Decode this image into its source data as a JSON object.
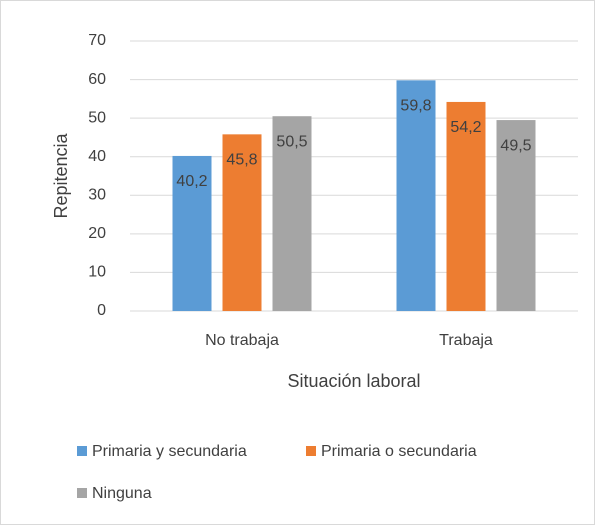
{
  "chart_data": {
    "type": "bar",
    "categories": [
      "No trabaja",
      "Trabaja"
    ],
    "series": [
      {
        "name": "Primaria y secundaria",
        "color": "#5b9bd5",
        "values": [
          40.2,
          59.8
        ],
        "value_labels": [
          "40,2",
          "59,8"
        ]
      },
      {
        "name": "Primaria o secundaria",
        "color": "#ed7d31",
        "values": [
          45.8,
          54.2
        ],
        "value_labels": [
          "45,8",
          "54,2"
        ]
      },
      {
        "name": "Ninguna",
        "color": "#a5a5a5",
        "values": [
          50.5,
          49.5
        ],
        "value_labels": [
          "50,5",
          "49,5"
        ]
      }
    ],
    "xlabel": "Situación laboral",
    "ylabel": "Repitencia",
    "ylim": [
      0,
      70
    ],
    "yticks": [
      0,
      10,
      20,
      30,
      40,
      50,
      60,
      70
    ],
    "grid": true,
    "legend": "bottom"
  }
}
